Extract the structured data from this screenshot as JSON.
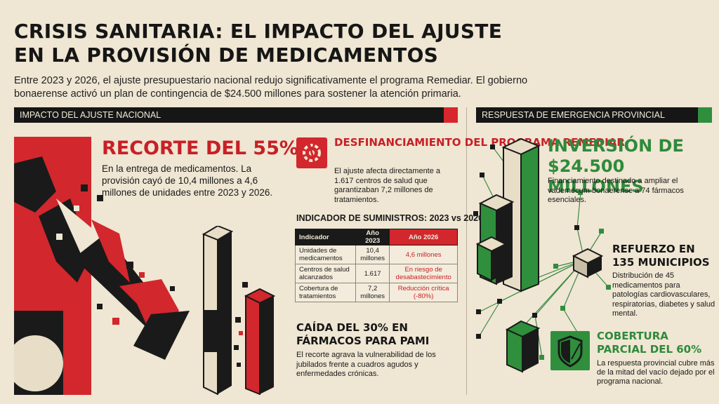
{
  "header": {
    "title": "CRISIS SANITARIA: EL IMPACTO DEL AJUSTE EN LA PROVISIÓN DE MEDICAMENTOS",
    "subtitle": "Entre 2023 y 2026, el ajuste presupuestario nacional redujo significativamente el programa Remediar. El gobierno bonaerense activó un plan de contingencia de $24.500 millones para sostener la atención primaria."
  },
  "sections": {
    "left_label": "IMPACTO DEL AJUSTE NACIONAL",
    "right_label": "RESPUESTA DE EMERGENCIA PROVINCIAL"
  },
  "recorte": {
    "title": "RECORTE DEL 55%",
    "text": "En la entrega de medicamentos. La provisión cayó de 10,4 millones a 4,6 millones de unidades entre 2023 y 2026."
  },
  "desfinanciamiento": {
    "icon": "broken-gear-icon",
    "title": "DESFINANCIAMIENTO DEL PROGRAMA REMEDIAR",
    "text": "El ajuste afecta directamente a 1.617 centros de salud que garantizaban 7,2 millones de tratamientos."
  },
  "indicator_table": {
    "title": "INDICADOR DE SUMINISTROS: 2023 vs 2026",
    "headers": [
      "Indicador",
      "Año 2023",
      "Año 2026"
    ],
    "rows": [
      {
        "indicator": "Unidades de medicamentos",
        "y2023": "10,4 millones",
        "y2026": "4,6 millones"
      },
      {
        "indicator": "Centros de salud alcanzados",
        "y2023": "1.617",
        "y2026": "En riesgo de desabastecimiento"
      },
      {
        "indicator": "Cobertura de tratamientos",
        "y2023": "7,2 millones",
        "y2026": "Reducción crítica (-80%)"
      }
    ]
  },
  "pami": {
    "title": "CAÍDA DEL 30% EN FÁRMACOS PARA PAMI",
    "text": "El recorte agrava la vulnerabilidad de los jubilados frente a cuadros agudos y enfermedades crónicas."
  },
  "inversion": {
    "title": "INVERSIÓN DE $24.500 MILLONES",
    "text": "Financiamiento destinado a ampliar el vademécum bonaerense a 74 fármacos esenciales."
  },
  "refuerzo": {
    "title": "REFUERZO EN 135 MUNICIPIOS",
    "text": "Distribución de 45 medicamentos para patologías cardiovasculares, respiratorias, diabetes y salud mental."
  },
  "cobertura": {
    "icon": "shield-icon",
    "title": "COBERTURA PARCIAL DEL 60%",
    "text": "La respuesta provincial cubre más de la mitad del vacío dejado por el programa nacional."
  },
  "colors": {
    "background": "#efe6d3",
    "red": "#d2272d",
    "green": "#2f8f3c",
    "black": "#161616"
  }
}
